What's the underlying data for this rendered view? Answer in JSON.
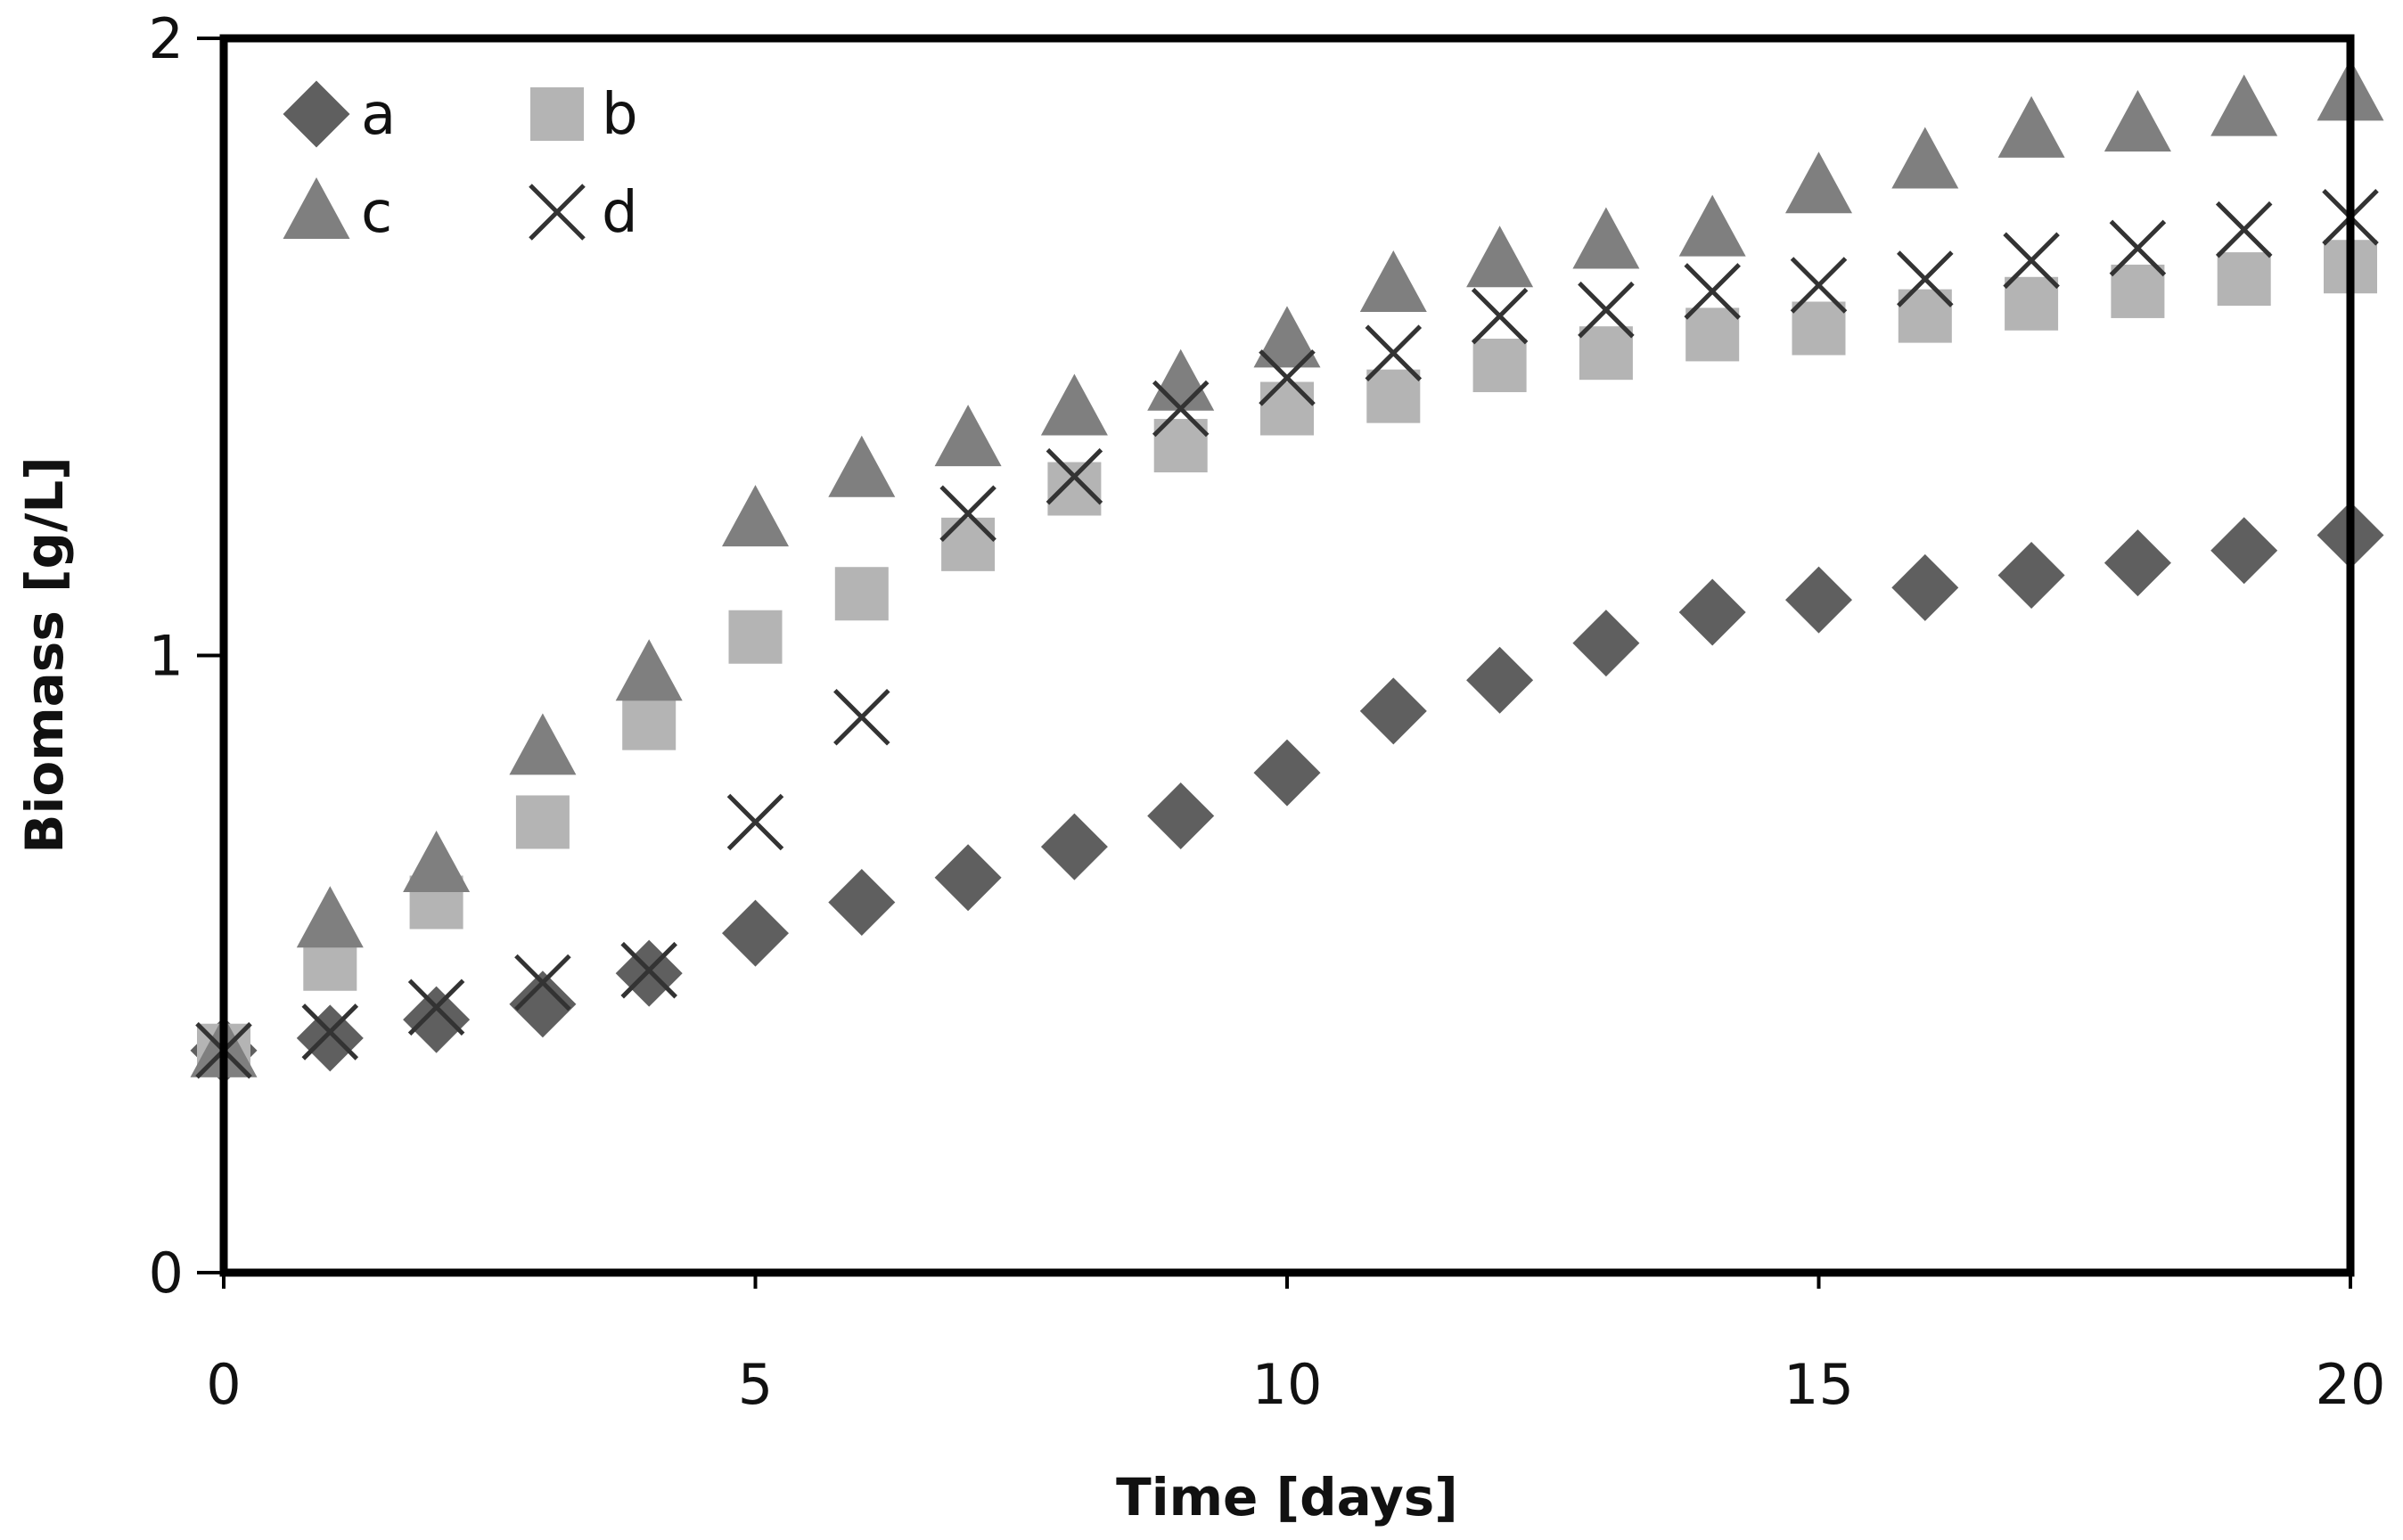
{
  "chart_data": {
    "type": "scatter",
    "title": "",
    "xlabel": "Time [days]",
    "ylabel": "Biomass  [g/L]",
    "xlim": [
      0,
      20
    ],
    "ylim": [
      0,
      2
    ],
    "xticks": [
      "0",
      "5",
      "10",
      "15",
      "20"
    ],
    "yticks": [
      "0",
      "1",
      "2"
    ],
    "grid": false,
    "legend_position": "top-left",
    "x": [
      0,
      1,
      2,
      3,
      4,
      5,
      6,
      7,
      8,
      9,
      10,
      11,
      12,
      13,
      14,
      15,
      16,
      17,
      18,
      19,
      20
    ],
    "series": [
      {
        "name": "a",
        "marker": "diamond",
        "color": "#5f5f5f",
        "values": [
          0.36,
          0.38,
          0.41,
          0.435,
          0.485,
          0.55,
          0.6,
          0.64,
          0.69,
          0.74,
          0.81,
          0.91,
          0.96,
          1.02,
          1.07,
          1.09,
          1.11,
          1.13,
          1.15,
          1.17,
          1.195
        ]
      },
      {
        "name": "b",
        "marker": "square",
        "color": "#b4b4b4",
        "values": [
          0.36,
          0.5,
          0.6,
          0.73,
          0.89,
          1.03,
          1.1,
          1.18,
          1.27,
          1.34,
          1.4,
          1.42,
          1.47,
          1.49,
          1.52,
          1.53,
          1.55,
          1.57,
          1.59,
          1.61,
          1.63
        ]
      },
      {
        "name": "c",
        "marker": "triangle",
        "color": "#7f7f7f",
        "values": [
          0.36,
          0.57,
          0.66,
          0.85,
          0.97,
          1.22,
          1.3,
          1.35,
          1.4,
          1.44,
          1.51,
          1.6,
          1.64,
          1.67,
          1.69,
          1.76,
          1.8,
          1.85,
          1.86,
          1.885,
          1.91
        ]
      },
      {
        "name": "d",
        "marker": "x",
        "color": "#333333",
        "values": [
          0.36,
          0.39,
          0.43,
          0.47,
          0.49,
          0.73,
          0.9,
          1.23,
          1.29,
          1.4,
          1.45,
          1.49,
          1.55,
          1.56,
          1.59,
          1.6,
          1.61,
          1.64,
          1.66,
          1.69,
          1.71
        ]
      }
    ]
  }
}
